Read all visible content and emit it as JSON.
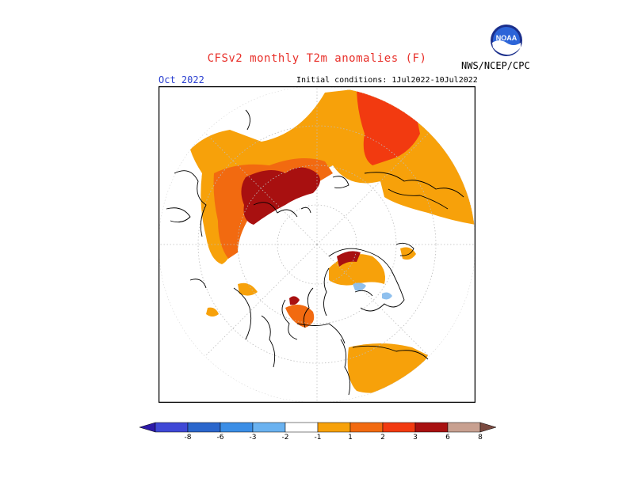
{
  "title": "CFSv2 monthly T2m anomalies (F)",
  "target_month": "Oct 2022",
  "initial_conditions": "Initial conditions: 1Jul2022-10Jul2022",
  "agency": "NWS/NCEP/CPC",
  "logo_text": "NOAA",
  "colorbar": {
    "ticks": [
      "-8",
      "-6",
      "-3",
      "-2",
      "-1",
      "1",
      "2",
      "3",
      "6",
      "8"
    ],
    "colors": [
      "#2d1aa8",
      "#3f48d6",
      "#2a66cc",
      "#3b8ee6",
      "#6ab2f0",
      "#ffffff",
      "#f7a10a",
      "#f26a10",
      "#f23a10",
      "#a81010",
      "#c8a090",
      "#7a4a40"
    ]
  },
  "anomaly_colors": {
    "ge1": "#f7a10a",
    "ge2": "#f26a10",
    "ge3": "#f23a10",
    "ge6": "#a81010",
    "le_neg1": "#8fc0ee"
  }
}
